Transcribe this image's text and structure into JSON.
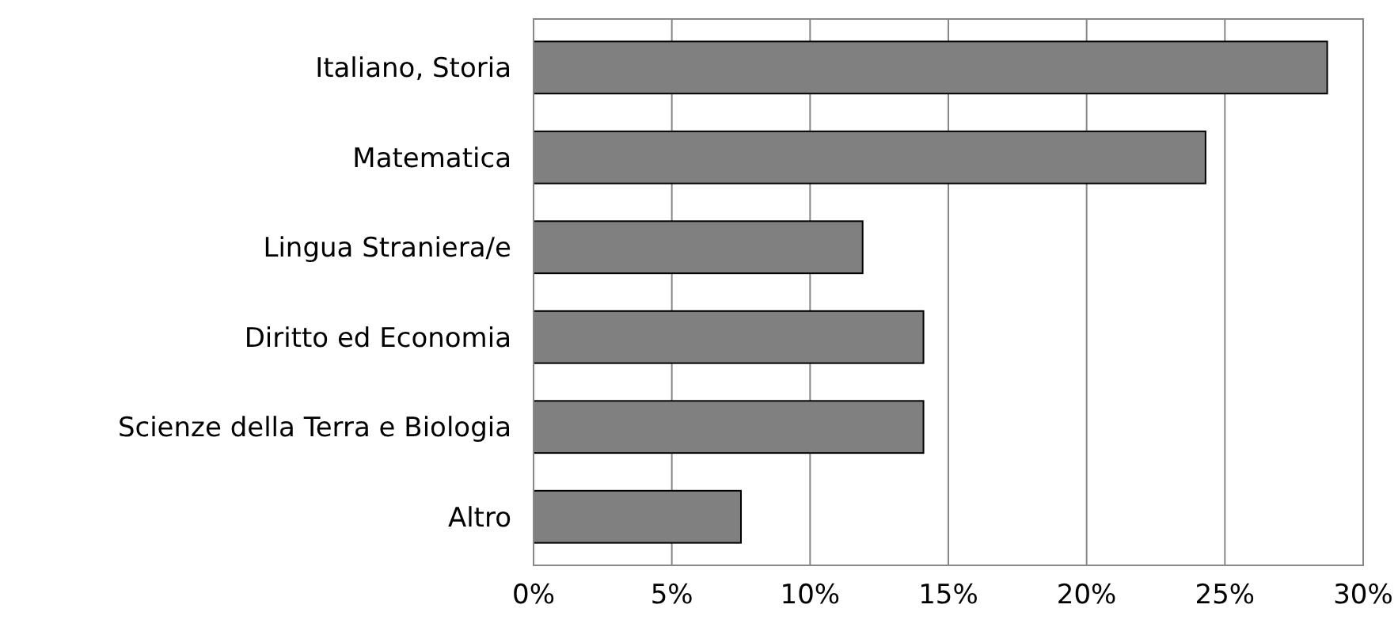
{
  "chart_data": {
    "type": "bar",
    "orientation": "horizontal",
    "categories": [
      "Italiano, Storia",
      "Matematica",
      "Lingua Straniera/e",
      "Diritto ed Economia",
      "Scienze della Terra e Biologia",
      "Altro"
    ],
    "values": [
      28.7,
      24.3,
      11.9,
      14.1,
      14.1,
      7.5
    ],
    "color": "#808080",
    "xlim": [
      0,
      30
    ],
    "xticks": [
      {
        "value": 0,
        "label": "0%"
      },
      {
        "value": 5,
        "label": "5%"
      },
      {
        "value": 10,
        "label": "10%"
      },
      {
        "value": 15,
        "label": "15%"
      },
      {
        "value": 20,
        "label": "20%"
      },
      {
        "value": 25,
        "label": "25%"
      },
      {
        "value": 30,
        "label": "30%"
      }
    ],
    "grid": "x"
  }
}
